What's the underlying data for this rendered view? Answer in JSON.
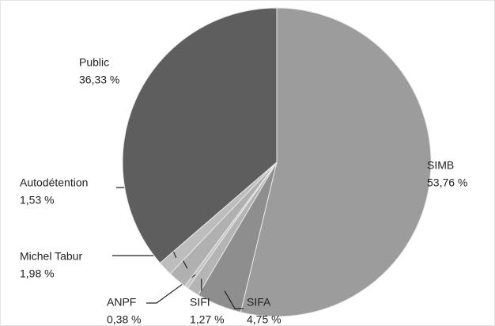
{
  "chart_data": {
    "type": "pie",
    "categories": [
      "SIMB",
      "SIFA",
      "SIFI",
      "ANPF",
      "Michel Tabur",
      "Autodétention",
      "Public"
    ],
    "values": [
      53.76,
      4.75,
      1.27,
      0.38,
      1.98,
      1.53,
      36.33
    ],
    "value_labels": [
      "53,76 %",
      "4,75 %",
      "1,27 %",
      "0,38 %",
      "1,98 %",
      "1,53 %",
      "36,33 %"
    ],
    "colors": [
      "#9c9c9c",
      "#8e8e8e",
      "#b4b4b4",
      "#c4c4c4",
      "#b0b0b0",
      "#bdbdbd",
      "#5e5e5e"
    ]
  }
}
